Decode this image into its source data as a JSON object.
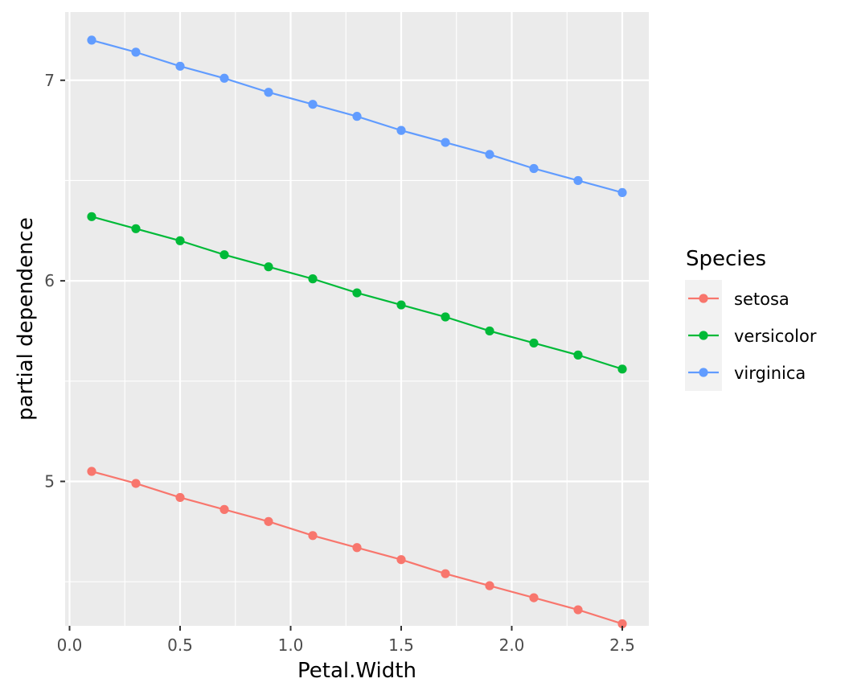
{
  "chart_data": {
    "type": "line",
    "xlabel": "Petal.Width",
    "ylabel": "partial dependence",
    "xlim": [
      -0.02,
      2.62
    ],
    "ylim": [
      4.28,
      7.34
    ],
    "x_ticks": [
      0.0,
      0.5,
      1.0,
      1.5,
      2.0,
      2.5
    ],
    "x_tick_labels": [
      "0.0",
      "0.5",
      "1.0",
      "1.5",
      "2.0",
      "2.5"
    ],
    "y_ticks": [
      5,
      6,
      7
    ],
    "y_tick_labels": [
      "5",
      "6",
      "7"
    ],
    "grid": true,
    "panel_background": "#ebebeb",
    "legend": {
      "title": "Species",
      "placement": "right"
    },
    "x": [
      0.1,
      0.3,
      0.5,
      0.7,
      0.9,
      1.1,
      1.3,
      1.5,
      1.7,
      1.9,
      2.1,
      2.3,
      2.5
    ],
    "series": [
      {
        "name": "setosa",
        "color": "#f8766d",
        "values": [
          5.05,
          4.99,
          4.92,
          4.86,
          4.8,
          4.73,
          4.67,
          4.61,
          4.54,
          4.48,
          4.42,
          4.36,
          4.29
        ]
      },
      {
        "name": "versicolor",
        "color": "#00ba38",
        "values": [
          6.32,
          6.26,
          6.2,
          6.13,
          6.07,
          6.01,
          5.94,
          5.88,
          5.82,
          5.75,
          5.69,
          5.63,
          5.56
        ]
      },
      {
        "name": "virginica",
        "color": "#619cff",
        "values": [
          7.2,
          7.14,
          7.07,
          7.01,
          6.94,
          6.88,
          6.82,
          6.75,
          6.69,
          6.63,
          6.56,
          6.5,
          6.44
        ]
      }
    ]
  }
}
